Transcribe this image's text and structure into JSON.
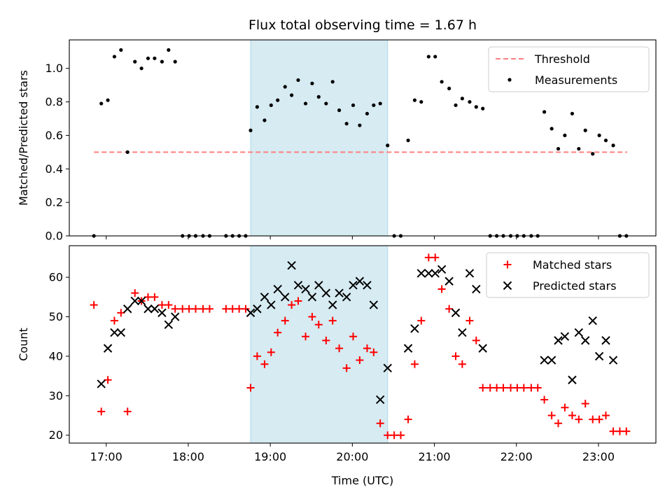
{
  "chart_data": [
    {
      "type": "scatter",
      "title": "Flux total observing time = 1.67 h",
      "ylabel": "Matched/Predicted stars",
      "xlabel": "",
      "xlim": [
        16.55,
        23.7
      ],
      "ylim": [
        0,
        1.17
      ],
      "yticks": [
        0,
        0.2,
        0.4,
        0.6,
        0.8,
        1.0
      ],
      "ytick_labels": [
        "0.0",
        "0.2",
        "0.4",
        "0.6",
        "0.8",
        "1.0"
      ],
      "shaded_region": {
        "x_start": 18.76,
        "x_end": 20.43,
        "color": "#add8e6"
      },
      "legend": {
        "placement": "top-right",
        "entries": [
          "Threshold",
          "Measurements"
        ]
      },
      "threshold": {
        "name": "Threshold",
        "y": 0.5,
        "x_range": [
          16.85,
          23.35
        ],
        "color": "#ff7f7f",
        "style": "dashed"
      },
      "series": [
        {
          "name": "Measurements",
          "color": "#000000",
          "marker": "dot",
          "points": [
            [
              16.85,
              0.0
            ],
            [
              16.94,
              0.79
            ],
            [
              17.02,
              0.81
            ],
            [
              17.1,
              1.07
            ],
            [
              17.18,
              1.11
            ],
            [
              17.26,
              0.5
            ],
            [
              17.35,
              1.04
            ],
            [
              17.43,
              1.0
            ],
            [
              17.51,
              1.06
            ],
            [
              17.59,
              1.06
            ],
            [
              17.68,
              1.04
            ],
            [
              17.76,
              1.11
            ],
            [
              17.84,
              1.04
            ],
            [
              17.93,
              0.0
            ],
            [
              18.01,
              0.0
            ],
            [
              18.09,
              0.0
            ],
            [
              18.18,
              0.0
            ],
            [
              18.26,
              0.0
            ],
            [
              18.46,
              0.0
            ],
            [
              18.54,
              0.0
            ],
            [
              18.62,
              0.0
            ],
            [
              18.7,
              0.0
            ],
            [
              18.76,
              0.63
            ],
            [
              18.84,
              0.77
            ],
            [
              18.93,
              0.69
            ],
            [
              19.01,
              0.78
            ],
            [
              19.09,
              0.81
            ],
            [
              19.18,
              0.89
            ],
            [
              19.26,
              0.84
            ],
            [
              19.34,
              0.93
            ],
            [
              19.43,
              0.79
            ],
            [
              19.51,
              0.91
            ],
            [
              19.59,
              0.83
            ],
            [
              19.68,
              0.79
            ],
            [
              19.76,
              0.92
            ],
            [
              19.84,
              0.75
            ],
            [
              19.93,
              0.67
            ],
            [
              20.01,
              0.78
            ],
            [
              20.09,
              0.66
            ],
            [
              20.18,
              0.73
            ],
            [
              20.26,
              0.78
            ],
            [
              20.34,
              0.79
            ],
            [
              20.43,
              0.54
            ],
            [
              20.51,
              0.0
            ],
            [
              20.59,
              0.0
            ],
            [
              20.68,
              0.57
            ],
            [
              20.76,
              0.81
            ],
            [
              20.84,
              0.8
            ],
            [
              20.93,
              1.07
            ],
            [
              21.01,
              1.07
            ],
            [
              21.09,
              0.92
            ],
            [
              21.18,
              0.88
            ],
            [
              21.26,
              0.78
            ],
            [
              21.34,
              0.82
            ],
            [
              21.43,
              0.8
            ],
            [
              21.51,
              0.77
            ],
            [
              21.59,
              0.76
            ],
            [
              21.68,
              0.0
            ],
            [
              21.76,
              0.0
            ],
            [
              21.84,
              0.0
            ],
            [
              21.93,
              0.0
            ],
            [
              22.01,
              0.0
            ],
            [
              22.09,
              0.0
            ],
            [
              22.18,
              0.0
            ],
            [
              22.26,
              0.0
            ],
            [
              22.34,
              0.74
            ],
            [
              22.43,
              0.64
            ],
            [
              22.51,
              0.52
            ],
            [
              22.59,
              0.6
            ],
            [
              22.68,
              0.73
            ],
            [
              22.76,
              0.52
            ],
            [
              22.84,
              0.63
            ],
            [
              22.93,
              0.49
            ],
            [
              23.01,
              0.6
            ],
            [
              23.09,
              0.57
            ],
            [
              23.18,
              0.54
            ],
            [
              23.26,
              0.0
            ],
            [
              23.34,
              0.0
            ]
          ]
        }
      ]
    },
    {
      "type": "scatter",
      "title": "",
      "ylabel": "Count",
      "xlabel": "Time (UTC)",
      "xlim": [
        16.55,
        23.7
      ],
      "ylim": [
        18,
        68
      ],
      "yticks": [
        20,
        30,
        40,
        50,
        60
      ],
      "ytick_labels": [
        "20",
        "30",
        "40",
        "50",
        "60"
      ],
      "xticks": [
        17,
        18,
        19,
        20,
        21,
        22,
        23
      ],
      "xtick_labels": [
        "17:00",
        "18:00",
        "19:00",
        "20:00",
        "21:00",
        "22:00",
        "23:00"
      ],
      "shaded_region": {
        "x_start": 18.76,
        "x_end": 20.43,
        "color": "#add8e6"
      },
      "legend": {
        "placement": "top-right",
        "entries": [
          "Matched stars",
          "Predicted stars"
        ]
      },
      "series": [
        {
          "name": "Matched stars",
          "color": "#ff0000",
          "marker": "plus",
          "points": [
            [
              16.85,
              53
            ],
            [
              16.94,
              26
            ],
            [
              17.02,
              34
            ],
            [
              17.1,
              49
            ],
            [
              17.18,
              51
            ],
            [
              17.26,
              26
            ],
            [
              17.35,
              56
            ],
            [
              17.43,
              54
            ],
            [
              17.51,
              55
            ],
            [
              17.59,
              55
            ],
            [
              17.68,
              53
            ],
            [
              17.76,
              53
            ],
            [
              17.84,
              52
            ],
            [
              17.93,
              52
            ],
            [
              18.01,
              52
            ],
            [
              18.09,
              52
            ],
            [
              18.18,
              52
            ],
            [
              18.26,
              52
            ],
            [
              18.46,
              52
            ],
            [
              18.54,
              52
            ],
            [
              18.62,
              52
            ],
            [
              18.7,
              52
            ],
            [
              18.76,
              32
            ],
            [
              18.84,
              40
            ],
            [
              18.93,
              38
            ],
            [
              19.01,
              41
            ],
            [
              19.09,
              46
            ],
            [
              19.18,
              49
            ],
            [
              19.26,
              53
            ],
            [
              19.34,
              54
            ],
            [
              19.43,
              45
            ],
            [
              19.51,
              50
            ],
            [
              19.59,
              48
            ],
            [
              19.68,
              44
            ],
            [
              19.76,
              49
            ],
            [
              19.84,
              42
            ],
            [
              19.93,
              37
            ],
            [
              20.01,
              45
            ],
            [
              20.09,
              39
            ],
            [
              20.18,
              42
            ],
            [
              20.26,
              41
            ],
            [
              20.34,
              23
            ],
            [
              20.43,
              20
            ],
            [
              20.51,
              20
            ],
            [
              20.59,
              20
            ],
            [
              20.68,
              24
            ],
            [
              20.76,
              38
            ],
            [
              20.84,
              49
            ],
            [
              20.93,
              65
            ],
            [
              21.01,
              65
            ],
            [
              21.09,
              57
            ],
            [
              21.18,
              52
            ],
            [
              21.26,
              40
            ],
            [
              21.34,
              38
            ],
            [
              21.43,
              49
            ],
            [
              21.51,
              44
            ],
            [
              21.59,
              32
            ],
            [
              21.68,
              32
            ],
            [
              21.76,
              32
            ],
            [
              21.84,
              32
            ],
            [
              21.93,
              32
            ],
            [
              22.01,
              32
            ],
            [
              22.09,
              32
            ],
            [
              22.18,
              32
            ],
            [
              22.26,
              32
            ],
            [
              22.34,
              29
            ],
            [
              22.43,
              25
            ],
            [
              22.51,
              23
            ],
            [
              22.59,
              27
            ],
            [
              22.68,
              25
            ],
            [
              22.76,
              24
            ],
            [
              22.84,
              28
            ],
            [
              22.93,
              24
            ],
            [
              23.01,
              24
            ],
            [
              23.09,
              25
            ],
            [
              23.18,
              21
            ],
            [
              23.26,
              21
            ],
            [
              23.34,
              21
            ]
          ]
        },
        {
          "name": "Predicted stars",
          "color": "#000000",
          "marker": "x",
          "points": [
            [
              16.94,
              33
            ],
            [
              17.02,
              42
            ],
            [
              17.1,
              46
            ],
            [
              17.18,
              46
            ],
            [
              17.26,
              52
            ],
            [
              17.35,
              54
            ],
            [
              17.43,
              54
            ],
            [
              17.51,
              52
            ],
            [
              17.59,
              52
            ],
            [
              17.68,
              51
            ],
            [
              17.76,
              48
            ],
            [
              17.84,
              50
            ],
            [
              18.76,
              51
            ],
            [
              18.84,
              52
            ],
            [
              18.93,
              55
            ],
            [
              19.01,
              53
            ],
            [
              19.09,
              57
            ],
            [
              19.18,
              55
            ],
            [
              19.26,
              63
            ],
            [
              19.34,
              58
            ],
            [
              19.43,
              57
            ],
            [
              19.51,
              55
            ],
            [
              19.59,
              58
            ],
            [
              19.68,
              56
            ],
            [
              19.76,
              53
            ],
            [
              19.84,
              56
            ],
            [
              19.93,
              55
            ],
            [
              20.01,
              58
            ],
            [
              20.09,
              59
            ],
            [
              20.18,
              58
            ],
            [
              20.26,
              53
            ],
            [
              20.34,
              29
            ],
            [
              20.43,
              37
            ],
            [
              20.68,
              42
            ],
            [
              20.76,
              47
            ],
            [
              20.84,
              61
            ],
            [
              20.93,
              61
            ],
            [
              21.01,
              61
            ],
            [
              21.09,
              62
            ],
            [
              21.18,
              59
            ],
            [
              21.26,
              51
            ],
            [
              21.34,
              46
            ],
            [
              21.43,
              61
            ],
            [
              21.51,
              57
            ],
            [
              21.59,
              42
            ],
            [
              22.34,
              39
            ],
            [
              22.43,
              39
            ],
            [
              22.51,
              44
            ],
            [
              22.59,
              45
            ],
            [
              22.68,
              34
            ],
            [
              22.76,
              46
            ],
            [
              22.84,
              44
            ],
            [
              22.93,
              49
            ],
            [
              23.01,
              40
            ],
            [
              23.09,
              44
            ],
            [
              23.18,
              39
            ]
          ]
        }
      ]
    }
  ]
}
